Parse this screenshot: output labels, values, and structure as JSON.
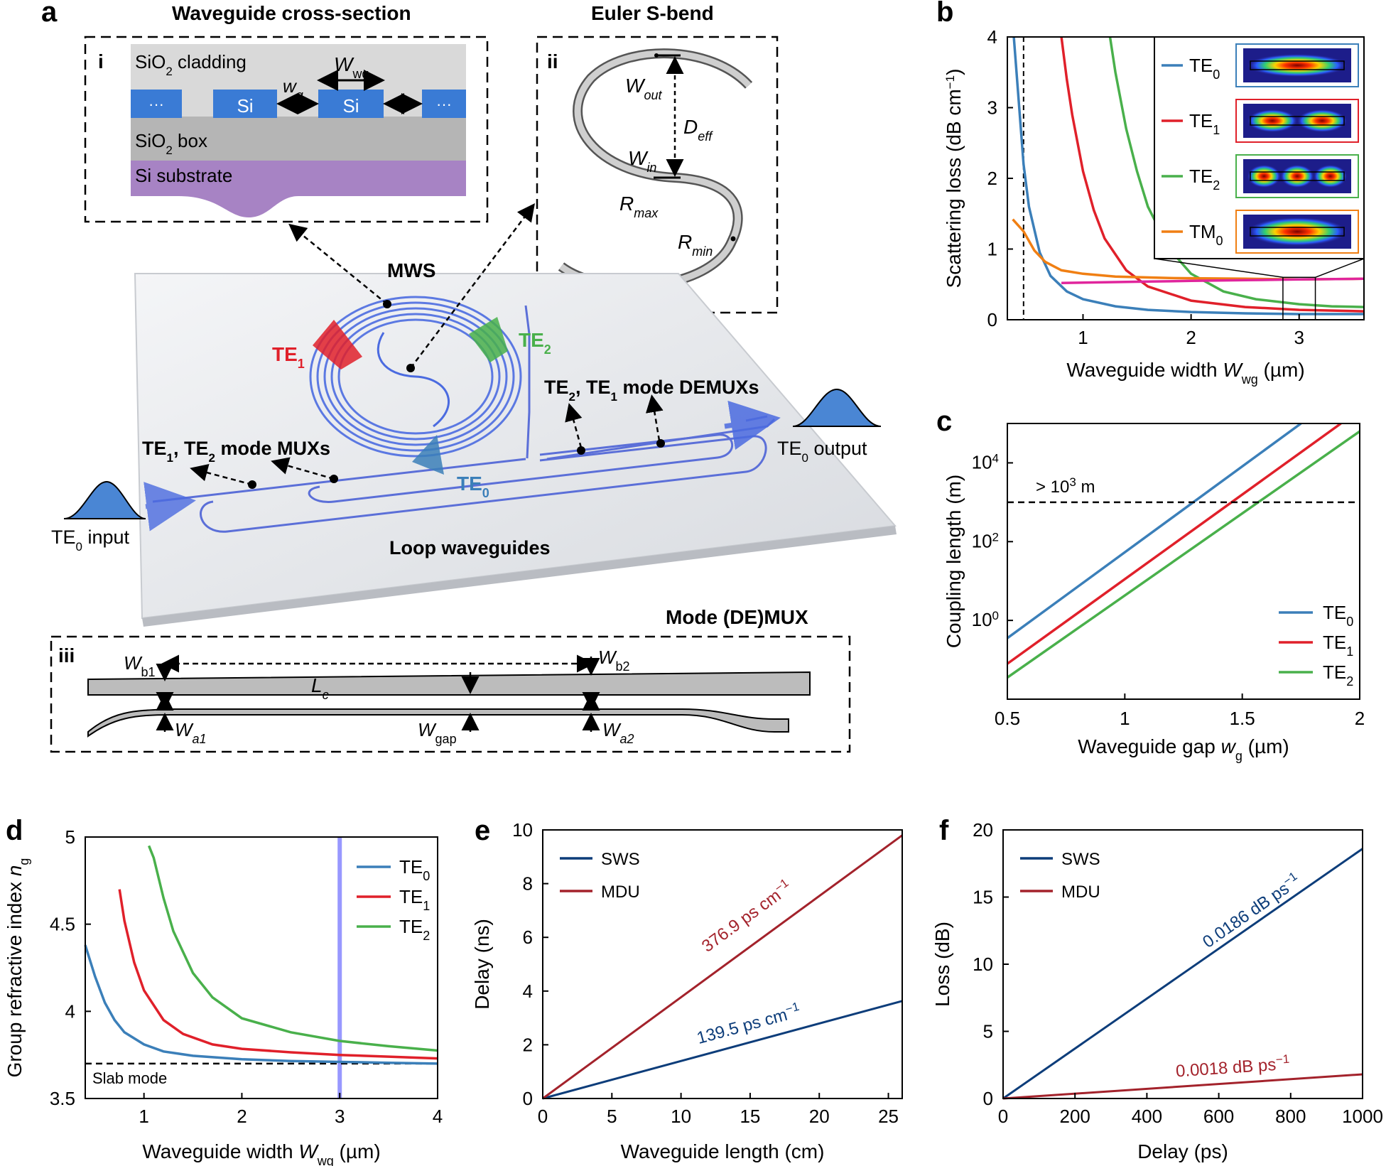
{
  "colors": {
    "te0": "#3b7fb9",
    "te1": "#e0202a",
    "te2": "#49b04b",
    "tm0": "#f07f13",
    "magenta": "#e0259c",
    "sws": "#0d3d7a",
    "mdu": "#a3222b",
    "waveguide": "#5b6fd8",
    "si_blue": "#3a7bd5",
    "substrate": "#a783c4"
  },
  "panel_a": {
    "label": "a",
    "cross_title": "Waveguide cross-section",
    "cross_roman": "i",
    "cladding": "SiO2 cladding",
    "box_layer": "SiO2 box",
    "substrate": "Si substrate",
    "si": "Si",
    "dots": "···",
    "wg_label": "w",
    "wg_sub": "g",
    "Wwg_label": "W",
    "Wwg_sub": "wg",
    "euler_title": "Euler S-bend",
    "euler_roman": "ii",
    "w_out": "W",
    "w_out_sub": "out",
    "w_in": "W",
    "w_in_sub": "in",
    "d_eff": "D",
    "d_eff_sub": "eff",
    "r_max": "R",
    "r_max_sub": "max",
    "r_min": "R",
    "r_min_sub": "min",
    "mws": "MWS",
    "te1": "TE",
    "te1_sub": "1",
    "te2": "TE",
    "te2_sub": "2",
    "te0": "TE",
    "te0_sub": "0",
    "demux": "TE2, TE1 mode DEMUXs",
    "mux": "TE1, TE2 mode MUXs",
    "te0_output": "TE0 output",
    "te0_input": "TE0 input",
    "loop": "Loop waveguides",
    "demux_title": "Mode (DE)MUX",
    "demux_roman": "iii",
    "wb1": "W",
    "wb1_sub": "b1",
    "wb2": "W",
    "wb2_sub": "b2",
    "lc": "L",
    "lc_sub": "c",
    "wa1": "W",
    "wa1_sub": "a1",
    "wgap": "W",
    "wgap_sub": "gap",
    "wa2": "W",
    "wa2_sub": "a2"
  },
  "chart_data": [
    {
      "panel": "b",
      "type": "line",
      "xlabel": "Waveguide width W_wg (µm)",
      "ylabel": "Scattering loss (dB cm⁻¹)",
      "xlim": [
        0.3,
        3.6
      ],
      "ylim": [
        0,
        4
      ],
      "xticks": [
        1,
        2,
        3
      ],
      "yticks": [
        0,
        1,
        2,
        3,
        4
      ],
      "vline_x": 0.45,
      "legend": [
        "TE0",
        "TE1",
        "TE2",
        "TM0"
      ],
      "series": [
        {
          "name": "TE0",
          "x": [
            0.36,
            0.4,
            0.45,
            0.5,
            0.6,
            0.7,
            0.85,
            1.0,
            1.3,
            1.6,
            2.0,
            2.5,
            3.0,
            3.6
          ],
          "y": [
            4.0,
            3.2,
            2.2,
            1.6,
            0.95,
            0.62,
            0.4,
            0.29,
            0.19,
            0.14,
            0.11,
            0.09,
            0.08,
            0.08
          ]
        },
        {
          "name": "TE1",
          "x": [
            0.8,
            0.85,
            0.9,
            1.0,
            1.1,
            1.2,
            1.4,
            1.6,
            2.0,
            2.5,
            3.0,
            3.6
          ],
          "y": [
            4.0,
            3.4,
            2.9,
            2.1,
            1.55,
            1.15,
            0.7,
            0.47,
            0.27,
            0.18,
            0.14,
            0.12
          ]
        },
        {
          "name": "TE2",
          "x": [
            1.25,
            1.3,
            1.4,
            1.5,
            1.6,
            1.8,
            2.0,
            2.3,
            2.6,
            3.0,
            3.3,
            3.6
          ],
          "y": [
            4.0,
            3.5,
            2.7,
            2.1,
            1.6,
            1.0,
            0.65,
            0.4,
            0.29,
            0.22,
            0.19,
            0.18
          ]
        },
        {
          "name": "TM0",
          "x": [
            0.35,
            0.45,
            0.55,
            0.65,
            0.8,
            1.0,
            1.3,
            1.8,
            2.5,
            3.0,
            3.6
          ],
          "y": [
            1.42,
            1.25,
            0.98,
            0.82,
            0.7,
            0.65,
            0.61,
            0.59,
            0.58,
            0.57,
            0.58
          ]
        },
        {
          "name": "",
          "x": [
            0.8,
            1.2,
            1.6,
            2.0,
            2.5,
            3.0,
            3.6
          ],
          "y": [
            0.52,
            0.53,
            0.54,
            0.55,
            0.56,
            0.57,
            0.58
          ]
        }
      ]
    },
    {
      "panel": "c",
      "type": "line",
      "xlabel": "Waveguide gap w_g (µm)",
      "ylabel": "Coupling length (m)",
      "xlim": [
        0.5,
        2
      ],
      "ylim_log10": [
        -2,
        5
      ],
      "xticks": [
        0.5,
        1,
        1.5,
        2
      ],
      "ytick_labels": [
        "10⁰",
        "10²",
        "10⁴"
      ],
      "hline": 1000,
      "annotation": "> 10³ m",
      "series": [
        {
          "name": "TE0",
          "x": [
            0.5,
            1.75
          ],
          "log10_y": [
            -0.45,
            5.0
          ]
        },
        {
          "name": "TE1",
          "x": [
            0.5,
            1.92
          ],
          "log10_y": [
            -1.1,
            5.0
          ]
        },
        {
          "name": "TE2",
          "x": [
            0.5,
            2.0
          ],
          "log10_y": [
            -1.45,
            4.8
          ]
        }
      ]
    },
    {
      "panel": "d",
      "type": "line",
      "xlabel": "Waveguide width W_wg (µm)",
      "ylabel": "Group refractive index n_g",
      "xlim": [
        0.4,
        4
      ],
      "ylim": [
        3.5,
        5
      ],
      "xticks": [
        1,
        2,
        3,
        4
      ],
      "ytick_labels": [
        "3.5",
        "4",
        "4.5",
        "5"
      ],
      "slab_mode": 3.7,
      "slab_label": "Slab mode",
      "vline_x": 3,
      "series": [
        {
          "name": "TE0",
          "x": [
            0.4,
            0.5,
            0.6,
            0.7,
            0.8,
            1.0,
            1.2,
            1.5,
            2.0,
            2.5,
            3.0,
            3.5,
            4.0
          ],
          "y": [
            4.38,
            4.2,
            4.05,
            3.95,
            3.88,
            3.81,
            3.77,
            3.745,
            3.725,
            3.715,
            3.71,
            3.705,
            3.7
          ]
        },
        {
          "name": "TE1",
          "x": [
            0.75,
            0.8,
            0.9,
            1.0,
            1.2,
            1.4,
            1.7,
            2.0,
            2.5,
            3.0,
            3.5,
            4.0
          ],
          "y": [
            4.7,
            4.52,
            4.28,
            4.12,
            3.95,
            3.87,
            3.81,
            3.785,
            3.765,
            3.75,
            3.74,
            3.73
          ]
        },
        {
          "name": "TE2",
          "x": [
            1.05,
            1.1,
            1.2,
            1.3,
            1.5,
            1.7,
            2.0,
            2.5,
            3.0,
            3.5,
            4.0
          ],
          "y": [
            4.95,
            4.88,
            4.65,
            4.46,
            4.22,
            4.08,
            3.96,
            3.88,
            3.83,
            3.8,
            3.775
          ]
        }
      ]
    },
    {
      "panel": "e",
      "type": "line",
      "xlabel": "Waveguide length (cm)",
      "ylabel": "Delay (ns)",
      "xlim": [
        0,
        26
      ],
      "ylim": [
        0,
        10
      ],
      "xticks": [
        0,
        5,
        10,
        15,
        20,
        25
      ],
      "yticks": [
        0,
        2,
        4,
        6,
        8,
        10
      ],
      "series": [
        {
          "name": "SWS",
          "x": [
            0,
            26
          ],
          "y": [
            0,
            3.63
          ],
          "slope_label": "139.5 ps cm⁻¹"
        },
        {
          "name": "MDU",
          "x": [
            0,
            26
          ],
          "y": [
            0,
            9.8
          ],
          "slope_label": "376.9 ps cm⁻¹"
        }
      ]
    },
    {
      "panel": "f",
      "type": "line",
      "xlabel": "Delay (ps)",
      "ylabel": "Loss (dB)",
      "xlim": [
        0,
        1000
      ],
      "ylim": [
        0,
        20
      ],
      "xticks": [
        0,
        200,
        400,
        600,
        800,
        1000
      ],
      "yticks": [
        0,
        5,
        10,
        15,
        20
      ],
      "series": [
        {
          "name": "SWS",
          "x": [
            0,
            1000
          ],
          "y": [
            0,
            18.6
          ],
          "slope_label": "0.0186 dB ps⁻¹"
        },
        {
          "name": "MDU",
          "x": [
            0,
            1000
          ],
          "y": [
            0,
            1.8
          ],
          "slope_label": "0.0018 dB ps⁻¹"
        }
      ]
    }
  ]
}
